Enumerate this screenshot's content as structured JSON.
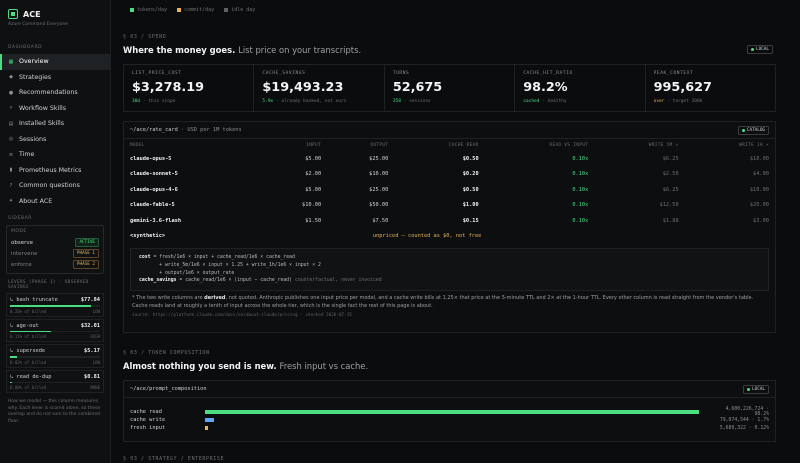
{
  "brand": {
    "name": "ACE",
    "sub": "Azure Command Everyone"
  },
  "sidebar": {
    "section_label": "DASHBOARD",
    "items": [
      {
        "icon": "grid-icon",
        "glyph": "▦",
        "label": "Overview",
        "active": true
      },
      {
        "icon": "strategy-icon",
        "glyph": "◆",
        "label": "Strategies"
      },
      {
        "icon": "recommendations-icon",
        "glyph": "●",
        "label": "Recommendations"
      },
      {
        "icon": "workflow-icon",
        "glyph": "⚡",
        "label": "Workflow Skills"
      },
      {
        "icon": "skills-icon",
        "glyph": "▤",
        "label": "Installed Skills"
      },
      {
        "icon": "sessions-icon",
        "glyph": "◎",
        "label": "Sessions"
      },
      {
        "icon": "time-icon",
        "glyph": "≡",
        "label": "Time"
      },
      {
        "icon": "metrics-icon",
        "glyph": "▮",
        "label": "Prometheus Metrics"
      },
      {
        "icon": "question-icon",
        "glyph": "?",
        "label": "Common questions"
      },
      {
        "icon": "info-icon",
        "glyph": "✦",
        "label": "About ACE"
      }
    ],
    "mode_section_label": "SIDEBAR",
    "mode_box": {
      "head": "MODE",
      "rows": [
        {
          "label": "observe",
          "badge": "ACTIVE",
          "kind": "green"
        },
        {
          "label": "intervene",
          "badge": "PHASE 1",
          "kind": "amber"
        },
        {
          "label": "enforce",
          "badge": "PHASE 2",
          "kind": "amber"
        }
      ]
    },
    "levers_head": "LEVERS (PHASE 1) · OBSERVED SAVINGS",
    "levers": [
      {
        "label": "bash truncate",
        "value": "$77.84",
        "fill": 0.9,
        "meta_left": "0.26% of billed",
        "meta_right": "LOW"
      },
      {
        "label": "age-out",
        "value": "$32.01",
        "fill": 0.45,
        "meta_left": "0.11% of billed",
        "meta_right": "HIGH"
      },
      {
        "label": "supersede",
        "value": "$5.17",
        "fill": 0.08,
        "meta_left": "0.02% of billed",
        "meta_right": "LOW"
      },
      {
        "label": "read de-dup",
        "value": "$0.81",
        "fill": 0.02,
        "meta_left": "0.00% of billed",
        "meta_right": "NONE"
      }
    ],
    "levers_note": "How we model — this column measures why. Each lever is scored alone, so these overlap and do not sum to the combined floor."
  },
  "top_legend": [
    {
      "label": "tokens/day",
      "color": "#4ade80"
    },
    {
      "label": "commit/day",
      "color": "#e8b45a"
    },
    {
      "label": "idle day",
      "color": "#5d6166"
    }
  ],
  "spend": {
    "kicker": "§ 03 / SPEND",
    "title": "Where the money goes.",
    "subtitle": "List price on your transcripts.",
    "tag": "LOCAL",
    "kpis": [
      {
        "label": "LIST_PRICE_COST",
        "value": "$3,278.19",
        "lead": "30d",
        "lead_kind": "green",
        "note": "· this scope"
      },
      {
        "label": "CACHE_SAVINGS",
        "value": "$19,493.23",
        "lead": "5.9x",
        "lead_kind": "green",
        "note": "· already banked, not ours"
      },
      {
        "label": "TURNS",
        "value": "52,675",
        "lead": "358",
        "lead_kind": "green",
        "note": "· sessions"
      },
      {
        "label": "CACHE_HIT_RATIO",
        "value": "98.2%",
        "lead": "cached",
        "lead_kind": "green",
        "note": "· healthy"
      },
      {
        "label": "PEAK_CONTEXT",
        "value": "995,627",
        "lead": "over",
        "lead_kind": "amber",
        "note": "· target 200k"
      }
    ]
  },
  "rate_card": {
    "title": "~/ace/rate_card",
    "unit": "· USD per 1M tokens",
    "tag": "CATALOG",
    "columns": [
      "MODEL",
      "INPUT",
      "OUTPUT",
      "CACHE READ",
      "READ VS INPUT",
      "WRITE 5M ×",
      "WRITE 1H ×"
    ],
    "rows": [
      [
        "claude-opus-5",
        "$5.00",
        "$25.00",
        "$0.50",
        "0.10x",
        "$6.25",
        "$10.00"
      ],
      [
        "claude-sonnet-5",
        "$2.00",
        "$10.00",
        "$0.20",
        "0.10x",
        "$2.50",
        "$4.00"
      ],
      [
        "claude-opus-4-6",
        "$5.00",
        "$25.00",
        "$0.50",
        "0.10x",
        "$6.25",
        "$10.00"
      ],
      [
        "claude-fable-5",
        "$10.00",
        "$50.00",
        "$1.00",
        "0.10x",
        "$12.50",
        "$20.00"
      ],
      [
        "gemini-3.6-flash",
        "$1.50",
        "$7.50",
        "$0.15",
        "0.10x",
        "$1.88",
        "$3.00"
      ]
    ],
    "synthetic_label": "<synthetic>",
    "synthetic_note": "unpriced — counted as $0, not free",
    "formula": [
      {
        "key": "cost",
        "rest": " = fresh/1e6 × input + cache_read/1e6 × cache_read"
      },
      {
        "key": "",
        "rest": "       + write_5m/1e6 × input × 1.25 + write_1h/1e6 × input × 2"
      },
      {
        "key": "",
        "rest": "       + output/1e6 × output_rate"
      },
      {
        "key": "cache_savings",
        "rest": " = cache_read/1e6 × (input − cache_read) ",
        "dim": "counterfactual, never invoiced"
      }
    ],
    "footnote_pre": "* The two write columns are ",
    "footnote_bold": "derived",
    "footnote_post": ", not quoted. Anthropic publishes one input price per model, and a cache write bills at 1.25× that price at the 5-minute TTL and 2× at the 1-hour TTL. Every other column is read straight from the vendor's table. Cache reads land at roughly a tenth of input across the whole tier, which is the single fact the rest of this page is about.",
    "source": "source: https://platform.claude.com/docs/en/about-claude/pricing · checked 2026-07-15"
  },
  "tokens": {
    "kicker": "§ 03 / TOKEN COMPOSITION",
    "title": "Almost nothing you send is new.",
    "subtitle": "Fresh input vs cache.",
    "card_title": "~/ace/prompt_composition",
    "tag": "LOCAL",
    "rows": [
      {
        "label": "cache read",
        "fraction": 0.982,
        "color": "#4ade80",
        "num": "4,600,226,724 · 98.2%"
      },
      {
        "label": "cache write",
        "fraction": 0.017,
        "color": "#60a5fa",
        "num": "79,074,544 · 1.7%"
      },
      {
        "label": "fresh input",
        "fraction": 0.0012,
        "color": "#e8b45a",
        "num": "5,689,322 · 0.12%"
      }
    ]
  },
  "next_kicker": "§ 03 / STRATEGY / ENTERPRISE"
}
